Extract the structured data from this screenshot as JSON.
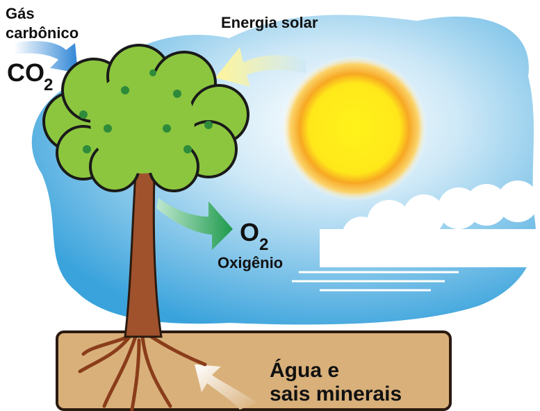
{
  "labels": {
    "carbon_dioxide": {
      "name_lines": [
        "Gás",
        "carbônico"
      ],
      "formula": "CO",
      "subscript": "2"
    },
    "solar_energy": "Energia solar",
    "oxygen": {
      "formula": "O",
      "subscript": "2",
      "name": "Oxigênio"
    },
    "water_minerals": {
      "lines": [
        "Água e",
        "sais minerais"
      ]
    }
  }
}
